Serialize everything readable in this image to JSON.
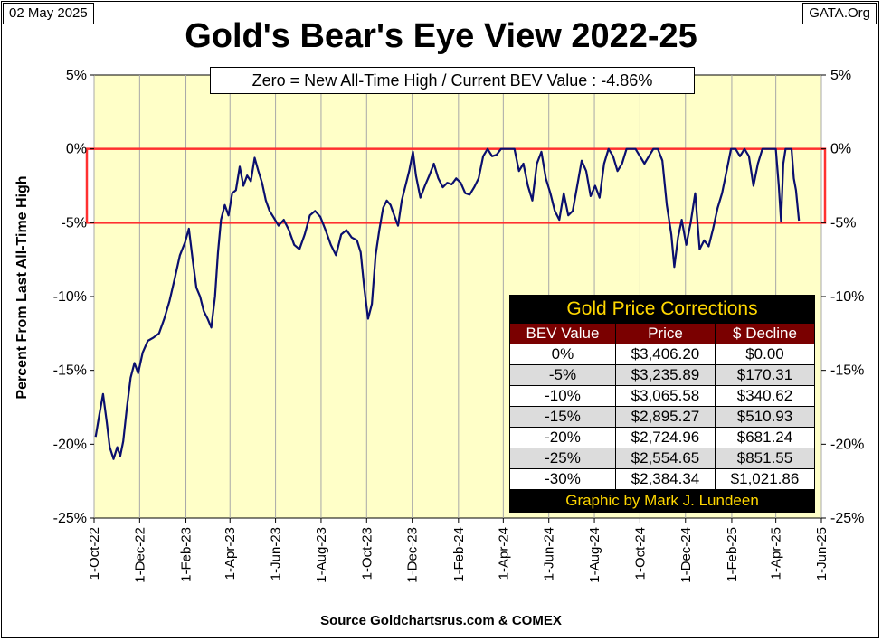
{
  "header": {
    "date": "02 May 2025",
    "source": "GATA.Org",
    "title": "Gold's Bear's Eye View 2022-25"
  },
  "annotation": "Zero = New All-Time High / Current  BEV Value : -4.86%",
  "colors": {
    "plot_bg": "#ffffc8",
    "line": "#0a0f6e",
    "band": "#ff3030",
    "table_header": "#7a0000",
    "table_title_text": "#ffd700"
  },
  "table": {
    "title": "Gold Price Corrections",
    "headers": [
      "BEV Value",
      "Price",
      "$ Decline"
    ],
    "rows": [
      [
        "0%",
        "$3,406.20",
        "$0.00"
      ],
      [
        "-5%",
        "$3,235.89",
        "$170.31"
      ],
      [
        "-10%",
        "$3,065.58",
        "$340.62"
      ],
      [
        "-15%",
        "$2,895.27",
        "$510.93"
      ],
      [
        "-20%",
        "$2,724.96",
        "$681.24"
      ],
      [
        "-25%",
        "$2,554.65",
        "$851.55"
      ],
      [
        "-30%",
        "$2,384.34",
        "$1,021.86"
      ]
    ],
    "footer": "Graphic by Mark J. Lundeen"
  },
  "chart_data": {
    "type": "line",
    "title": "Gold's Bear's Eye View 2022-25",
    "ylabel": "Percent  From Last  All-Time  High",
    "xlabel": "Source Goldchartsrus.com & COMEX",
    "ylim": [
      -25,
      5
    ],
    "xlim": [
      "2022-10-01",
      "2025-06-01"
    ],
    "y_ticks": [
      "5%",
      "0%",
      "-5%",
      "-10%",
      "-15%",
      "-20%",
      "-25%"
    ],
    "x_ticks": [
      "1-Oct-22",
      "1-Dec-22",
      "1-Feb-23",
      "1-Apr-23",
      "1-Jun-23",
      "1-Aug-23",
      "1-Oct-23",
      "1-Dec-23",
      "1-Feb-24",
      "1-Apr-24",
      "1-Jun-24",
      "1-Aug-24",
      "1-Oct-24",
      "1-Dec-24",
      "1-Feb-25",
      "1-Apr-25",
      "1-Jun-25"
    ],
    "grid": "vertical",
    "highlight_band": [
      -5,
      0
    ],
    "series": [
      {
        "values": [
          [
            "2022-10-03",
            -19.5
          ],
          [
            "2022-10-08",
            -18.0
          ],
          [
            "2022-10-13",
            -16.6
          ],
          [
            "2022-10-18",
            -18.5
          ],
          [
            "2022-10-22",
            -20.2
          ],
          [
            "2022-10-27",
            -21.0
          ],
          [
            "2022-11-01",
            -20.2
          ],
          [
            "2022-11-05",
            -20.8
          ],
          [
            "2022-11-09",
            -19.8
          ],
          [
            "2022-11-14",
            -17.5
          ],
          [
            "2022-11-19",
            -15.5
          ],
          [
            "2022-11-24",
            -14.5
          ],
          [
            "2022-11-29",
            -15.2
          ],
          [
            "2022-12-05",
            -13.8
          ],
          [
            "2022-12-12",
            -13.0
          ],
          [
            "2022-12-19",
            -12.8
          ],
          [
            "2022-12-27",
            -12.5
          ],
          [
            "2023-01-03",
            -11.5
          ],
          [
            "2023-01-10",
            -10.3
          ],
          [
            "2023-01-17",
            -8.8
          ],
          [
            "2023-01-24",
            -7.2
          ],
          [
            "2023-01-31",
            -6.3
          ],
          [
            "2023-02-05",
            -5.4
          ],
          [
            "2023-02-10",
            -7.5
          ],
          [
            "2023-02-15",
            -9.4
          ],
          [
            "2023-02-20",
            -10.0
          ],
          [
            "2023-02-25",
            -11.0
          ],
          [
            "2023-03-02",
            -11.5
          ],
          [
            "2023-03-07",
            -12.1
          ],
          [
            "2023-03-12",
            -10.0
          ],
          [
            "2023-03-16",
            -7.0
          ],
          [
            "2023-03-20",
            -4.8
          ],
          [
            "2023-03-25",
            -3.8
          ],
          [
            "2023-03-30",
            -4.5
          ],
          [
            "2023-04-04",
            -3.0
          ],
          [
            "2023-04-09",
            -2.8
          ],
          [
            "2023-04-14",
            -1.2
          ],
          [
            "2023-04-19",
            -2.5
          ],
          [
            "2023-04-24",
            -1.8
          ],
          [
            "2023-04-29",
            -2.2
          ],
          [
            "2023-05-04",
            -0.6
          ],
          [
            "2023-05-09",
            -1.5
          ],
          [
            "2023-05-14",
            -2.3
          ],
          [
            "2023-05-19",
            -3.5
          ],
          [
            "2023-05-24",
            -4.2
          ],
          [
            "2023-05-29",
            -4.6
          ],
          [
            "2023-06-05",
            -5.2
          ],
          [
            "2023-06-12",
            -4.8
          ],
          [
            "2023-06-19",
            -5.5
          ],
          [
            "2023-06-26",
            -6.5
          ],
          [
            "2023-07-03",
            -6.8
          ],
          [
            "2023-07-10",
            -5.8
          ],
          [
            "2023-07-17",
            -4.5
          ],
          [
            "2023-07-24",
            -4.2
          ],
          [
            "2023-07-31",
            -4.6
          ],
          [
            "2023-08-07",
            -5.5
          ],
          [
            "2023-08-14",
            -6.5
          ],
          [
            "2023-08-21",
            -7.2
          ],
          [
            "2023-08-28",
            -5.8
          ],
          [
            "2023-09-04",
            -5.5
          ],
          [
            "2023-09-11",
            -6.0
          ],
          [
            "2023-09-18",
            -6.2
          ],
          [
            "2023-09-23",
            -7.0
          ],
          [
            "2023-09-28",
            -9.5
          ],
          [
            "2023-10-03",
            -11.5
          ],
          [
            "2023-10-08",
            -10.5
          ],
          [
            "2023-10-13",
            -7.2
          ],
          [
            "2023-10-18",
            -5.5
          ],
          [
            "2023-10-23",
            -4.0
          ],
          [
            "2023-10-28",
            -3.5
          ],
          [
            "2023-11-02",
            -3.8
          ],
          [
            "2023-11-07",
            -4.5
          ],
          [
            "2023-11-12",
            -5.2
          ],
          [
            "2023-11-17",
            -3.5
          ],
          [
            "2023-11-22",
            -2.5
          ],
          [
            "2023-11-27",
            -1.5
          ],
          [
            "2023-12-02",
            -0.2
          ],
          [
            "2023-12-06",
            -1.8
          ],
          [
            "2023-12-12",
            -3.3
          ],
          [
            "2023-12-18",
            -2.5
          ],
          [
            "2023-12-24",
            -1.8
          ],
          [
            "2023-12-30",
            -1.0
          ],
          [
            "2024-01-05",
            -2.0
          ],
          [
            "2024-01-11",
            -2.6
          ],
          [
            "2024-01-17",
            -2.3
          ],
          [
            "2024-01-23",
            -2.4
          ],
          [
            "2024-01-29",
            -2.0
          ],
          [
            "2024-02-04",
            -2.3
          ],
          [
            "2024-02-10",
            -3.0
          ],
          [
            "2024-02-16",
            -3.1
          ],
          [
            "2024-02-22",
            -2.6
          ],
          [
            "2024-02-28",
            -2.0
          ],
          [
            "2024-03-05",
            -0.5
          ],
          [
            "2024-03-11",
            0.0
          ],
          [
            "2024-03-17",
            -0.5
          ],
          [
            "2024-03-23",
            -0.4
          ],
          [
            "2024-03-29",
            0.0
          ],
          [
            "2024-04-04",
            0.0
          ],
          [
            "2024-04-10",
            0.0
          ],
          [
            "2024-04-16",
            0.0
          ],
          [
            "2024-04-22",
            -1.5
          ],
          [
            "2024-04-28",
            -1.0
          ],
          [
            "2024-05-04",
            -2.5
          ],
          [
            "2024-05-10",
            -3.5
          ],
          [
            "2024-05-16",
            -1.0
          ],
          [
            "2024-05-22",
            -0.2
          ],
          [
            "2024-05-28",
            -2.0
          ],
          [
            "2024-06-03",
            -3.0
          ],
          [
            "2024-06-09",
            -4.2
          ],
          [
            "2024-06-15",
            -4.8
          ],
          [
            "2024-06-21",
            -3.0
          ],
          [
            "2024-06-27",
            -4.5
          ],
          [
            "2024-07-03",
            -4.2
          ],
          [
            "2024-07-09",
            -2.5
          ],
          [
            "2024-07-15",
            -0.8
          ],
          [
            "2024-07-21",
            -1.5
          ],
          [
            "2024-07-27",
            -3.2
          ],
          [
            "2024-08-02",
            -2.5
          ],
          [
            "2024-08-08",
            -3.3
          ],
          [
            "2024-08-14",
            -1.0
          ],
          [
            "2024-08-20",
            0.0
          ],
          [
            "2024-08-26",
            -0.5
          ],
          [
            "2024-09-01",
            -1.5
          ],
          [
            "2024-09-07",
            -1.0
          ],
          [
            "2024-09-13",
            0.0
          ],
          [
            "2024-09-19",
            0.0
          ],
          [
            "2024-09-25",
            0.0
          ],
          [
            "2024-10-01",
            -0.5
          ],
          [
            "2024-10-07",
            -1.0
          ],
          [
            "2024-10-13",
            -0.5
          ],
          [
            "2024-10-19",
            0.0
          ],
          [
            "2024-10-25",
            0.0
          ],
          [
            "2024-10-31",
            -0.8
          ],
          [
            "2024-11-06",
            -3.8
          ],
          [
            "2024-11-12",
            -5.8
          ],
          [
            "2024-11-16",
            -8.0
          ],
          [
            "2024-11-21",
            -6.0
          ],
          [
            "2024-11-26",
            -4.8
          ],
          [
            "2024-12-02",
            -6.5
          ],
          [
            "2024-12-08",
            -5.0
          ],
          [
            "2024-12-14",
            -3.0
          ],
          [
            "2024-12-20",
            -6.8
          ],
          [
            "2024-12-26",
            -6.2
          ],
          [
            "2025-01-01",
            -6.6
          ],
          [
            "2025-01-07",
            -5.4
          ],
          [
            "2025-01-13",
            -4.0
          ],
          [
            "2025-01-19",
            -3.0
          ],
          [
            "2025-01-25",
            -1.5
          ],
          [
            "2025-01-31",
            0.0
          ],
          [
            "2025-02-06",
            0.0
          ],
          [
            "2025-02-12",
            -0.5
          ],
          [
            "2025-02-18",
            0.0
          ],
          [
            "2025-02-24",
            -0.5
          ],
          [
            "2025-03-02",
            -2.5
          ],
          [
            "2025-03-08",
            -1.0
          ],
          [
            "2025-03-14",
            0.0
          ],
          [
            "2025-03-20",
            0.0
          ],
          [
            "2025-03-26",
            0.0
          ],
          [
            "2025-04-01",
            0.0
          ],
          [
            "2025-04-05",
            -2.5
          ],
          [
            "2025-04-08",
            -4.9
          ],
          [
            "2025-04-11",
            -1.0
          ],
          [
            "2025-04-14",
            0.0
          ],
          [
            "2025-04-18",
            0.0
          ],
          [
            "2025-04-22",
            0.0
          ],
          [
            "2025-04-25",
            -2.0
          ],
          [
            "2025-04-28",
            -2.8
          ],
          [
            "2025-05-02",
            -4.86
          ]
        ]
      }
    ]
  }
}
